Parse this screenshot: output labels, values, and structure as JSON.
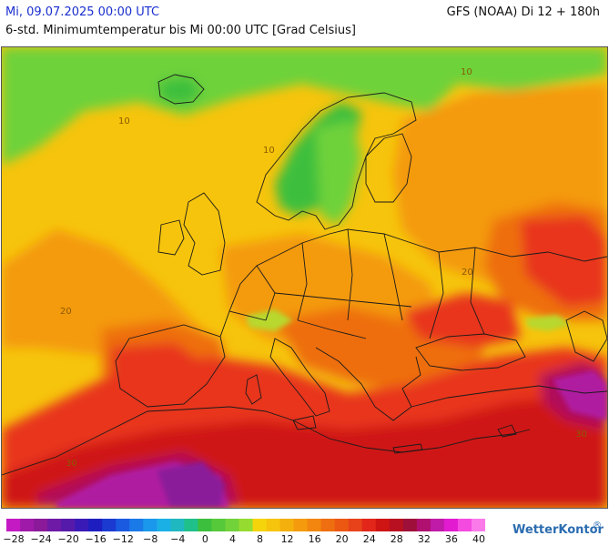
{
  "header": {
    "date": "Mi, 09.07.2025 00:00 UTC",
    "model": "GFS (NOAA) Di 12 + 180h",
    "subtitle": "6-std. Minimumtemperatur bis Mi 00:00 UTC [Grad Celsius]"
  },
  "map": {
    "contour_labels": [
      "10",
      "10",
      "10",
      "20",
      "20",
      "30",
      "30"
    ],
    "colors": {
      "deep_green": "#3cbf3c",
      "green": "#6ed23a",
      "yellow_green": "#b8d82e",
      "yellow": "#f6c40c",
      "orange": "#f49a0c",
      "dark_orange": "#ee6e10",
      "red": "#e8341a",
      "dark_red": "#cf1414",
      "crimson": "#b0105a",
      "magenta": "#b01aa0",
      "purple": "#8a1a9a",
      "border": "#1a1a1a"
    }
  },
  "legend": {
    "colors": [
      "#c41ac4",
      "#a01aaa",
      "#8a1a9a",
      "#6e1aa6",
      "#561aaa",
      "#3a1ab6",
      "#1e1ec0",
      "#1a3ad0",
      "#1a5ae0",
      "#1a7ae8",
      "#1a98ec",
      "#1ab0e6",
      "#20b8c0",
      "#20c08a",
      "#3cbf3c",
      "#56c93a",
      "#72d23a",
      "#96dc30",
      "#f6d40c",
      "#f6c40c",
      "#f4b00c",
      "#f49a0c",
      "#f2860e",
      "#ee6e10",
      "#ec5812",
      "#e8421a",
      "#e2261a",
      "#cf1414",
      "#b81020",
      "#9e103a",
      "#b01070",
      "#c01aa8",
      "#e21ad0",
      "#f44ae0",
      "#fa7aea"
    ],
    "labels": [
      "−28",
      "−24",
      "−20",
      "−16",
      "−12",
      "−8",
      "−4",
      "0",
      "4",
      "8",
      "12",
      "16",
      "20",
      "24",
      "28",
      "32",
      "36",
      "40"
    ]
  },
  "logo": {
    "text": "WetterKontor",
    "mark": "®"
  }
}
